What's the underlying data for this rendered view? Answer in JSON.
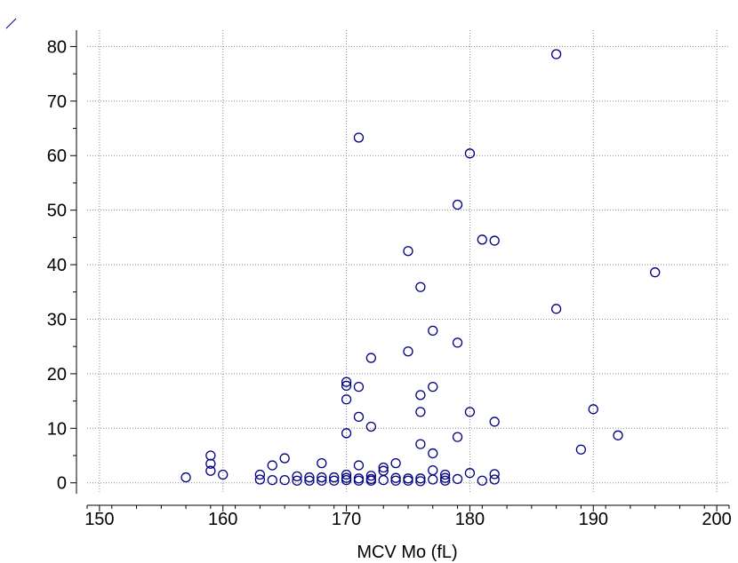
{
  "chart_data": {
    "type": "scatter",
    "xlabel": "MCV Mo (fL)",
    "ylabel": "",
    "xlim": [
      149,
      201
    ],
    "ylim": [
      -2,
      83
    ],
    "xticks": [
      "150",
      "160",
      "170",
      "180",
      "190",
      "200"
    ],
    "yticks": [
      "0",
      "10",
      "20",
      "30",
      "40",
      "50",
      "60",
      "70",
      "80"
    ],
    "grid": true,
    "marker_color": "#000080",
    "points": [
      [
        157,
        1.0
      ],
      [
        159,
        5.0
      ],
      [
        159,
        3.5
      ],
      [
        159,
        2.2
      ],
      [
        160,
        1.5
      ],
      [
        163,
        1.5
      ],
      [
        163,
        0.6
      ],
      [
        164,
        3.2
      ],
      [
        164,
        0.5
      ],
      [
        165,
        4.5
      ],
      [
        165,
        0.5
      ],
      [
        166,
        1.2
      ],
      [
        166,
        0.4
      ],
      [
        167,
        1.0
      ],
      [
        167,
        0.4
      ],
      [
        168,
        3.6
      ],
      [
        168,
        1.0
      ],
      [
        168,
        0.4
      ],
      [
        169,
        1.0
      ],
      [
        169,
        0.4
      ],
      [
        170,
        18.5
      ],
      [
        170,
        17.8
      ],
      [
        170,
        15.3
      ],
      [
        170,
        9.1
      ],
      [
        170,
        1.5
      ],
      [
        170,
        0.9
      ],
      [
        170,
        0.5
      ],
      [
        171,
        63.3
      ],
      [
        171,
        17.6
      ],
      [
        171,
        12.1
      ],
      [
        171,
        3.2
      ],
      [
        171,
        0.8
      ],
      [
        171,
        0.4
      ],
      [
        172,
        22.9
      ],
      [
        172,
        10.3
      ],
      [
        172,
        1.3
      ],
      [
        172,
        0.7
      ],
      [
        172,
        0.4
      ],
      [
        173,
        2.8
      ],
      [
        173,
        2.2
      ],
      [
        173,
        0.5
      ],
      [
        174,
        3.6
      ],
      [
        174,
        0.9
      ],
      [
        174,
        0.4
      ],
      [
        175,
        42.5
      ],
      [
        175,
        24.1
      ],
      [
        175,
        0.8
      ],
      [
        175,
        0.4
      ],
      [
        176,
        35.9
      ],
      [
        176,
        16.1
      ],
      [
        176,
        13.0
      ],
      [
        176,
        7.1
      ],
      [
        176,
        0.8
      ],
      [
        176,
        0.3
      ],
      [
        177,
        27.9
      ],
      [
        177,
        17.6
      ],
      [
        177,
        5.4
      ],
      [
        177,
        2.3
      ],
      [
        177,
        0.6
      ],
      [
        178,
        1.5
      ],
      [
        178,
        0.9
      ],
      [
        178,
        0.4
      ],
      [
        179,
        51.0
      ],
      [
        179,
        25.7
      ],
      [
        179,
        8.4
      ],
      [
        179,
        0.7
      ],
      [
        180,
        60.4
      ],
      [
        180,
        13.0
      ],
      [
        180,
        1.8
      ],
      [
        181,
        44.6
      ],
      [
        181,
        0.4
      ],
      [
        182,
        44.4
      ],
      [
        182,
        11.2
      ],
      [
        182,
        1.6
      ],
      [
        182,
        0.6
      ],
      [
        187,
        78.6
      ],
      [
        187,
        31.9
      ],
      [
        189,
        6.1
      ],
      [
        190,
        13.5
      ],
      [
        192,
        8.7
      ],
      [
        195,
        38.6
      ]
    ]
  }
}
